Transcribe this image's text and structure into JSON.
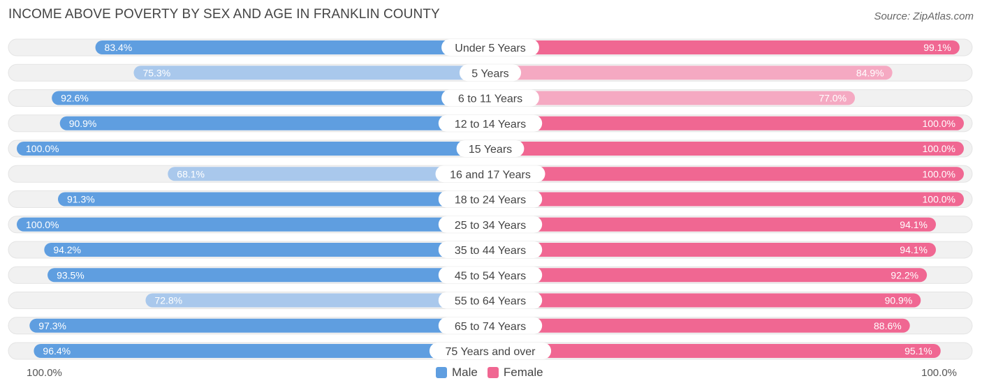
{
  "title": "INCOME ABOVE POVERTY BY SEX AND AGE IN FRANKLIN COUNTY",
  "source": "Source: ZipAtlas.com",
  "colors": {
    "male_strong": "#5f9ee0",
    "male_light": "#a9c8ec",
    "female_strong": "#f06792",
    "female_light": "#f5a9c2",
    "track": "#f1f1f1"
  },
  "chart_data": {
    "type": "bar",
    "orientation": "horizontal-diverging",
    "title": "INCOME ABOVE POVERTY BY SEX AND AGE IN FRANKLIN COUNTY",
    "categories": [
      "Under 5 Years",
      "5 Years",
      "6 to 11 Years",
      "12 to 14 Years",
      "15 Years",
      "16 and 17 Years",
      "18 to 24 Years",
      "25 to 34 Years",
      "35 to 44 Years",
      "45 to 54 Years",
      "55 to 64 Years",
      "65 to 74 Years",
      "75 Years and over"
    ],
    "series": [
      {
        "name": "Male",
        "values": [
          83.4,
          75.3,
          92.6,
          90.9,
          100.0,
          68.1,
          91.3,
          100.0,
          94.2,
          93.5,
          72.8,
          97.3,
          96.4
        ],
        "labels": [
          "83.4%",
          "75.3%",
          "92.6%",
          "90.9%",
          "100.0%",
          "68.1%",
          "91.3%",
          "100.0%",
          "94.2%",
          "93.5%",
          "72.8%",
          "97.3%",
          "96.4%"
        ]
      },
      {
        "name": "Female",
        "values": [
          99.1,
          84.9,
          77.0,
          100.0,
          100.0,
          100.0,
          100.0,
          94.1,
          94.1,
          92.2,
          90.9,
          88.6,
          95.1
        ],
        "labels": [
          "99.1%",
          "84.9%",
          "77.0%",
          "100.0%",
          "100.0%",
          "100.0%",
          "100.0%",
          "94.1%",
          "94.1%",
          "92.2%",
          "90.9%",
          "88.6%",
          "95.1%"
        ]
      }
    ],
    "xlim": [
      0,
      100
    ],
    "axis_left_label": "100.0%",
    "axis_right_label": "100.0%",
    "legend": [
      "Male",
      "Female"
    ],
    "legend_position": "bottom-center"
  }
}
